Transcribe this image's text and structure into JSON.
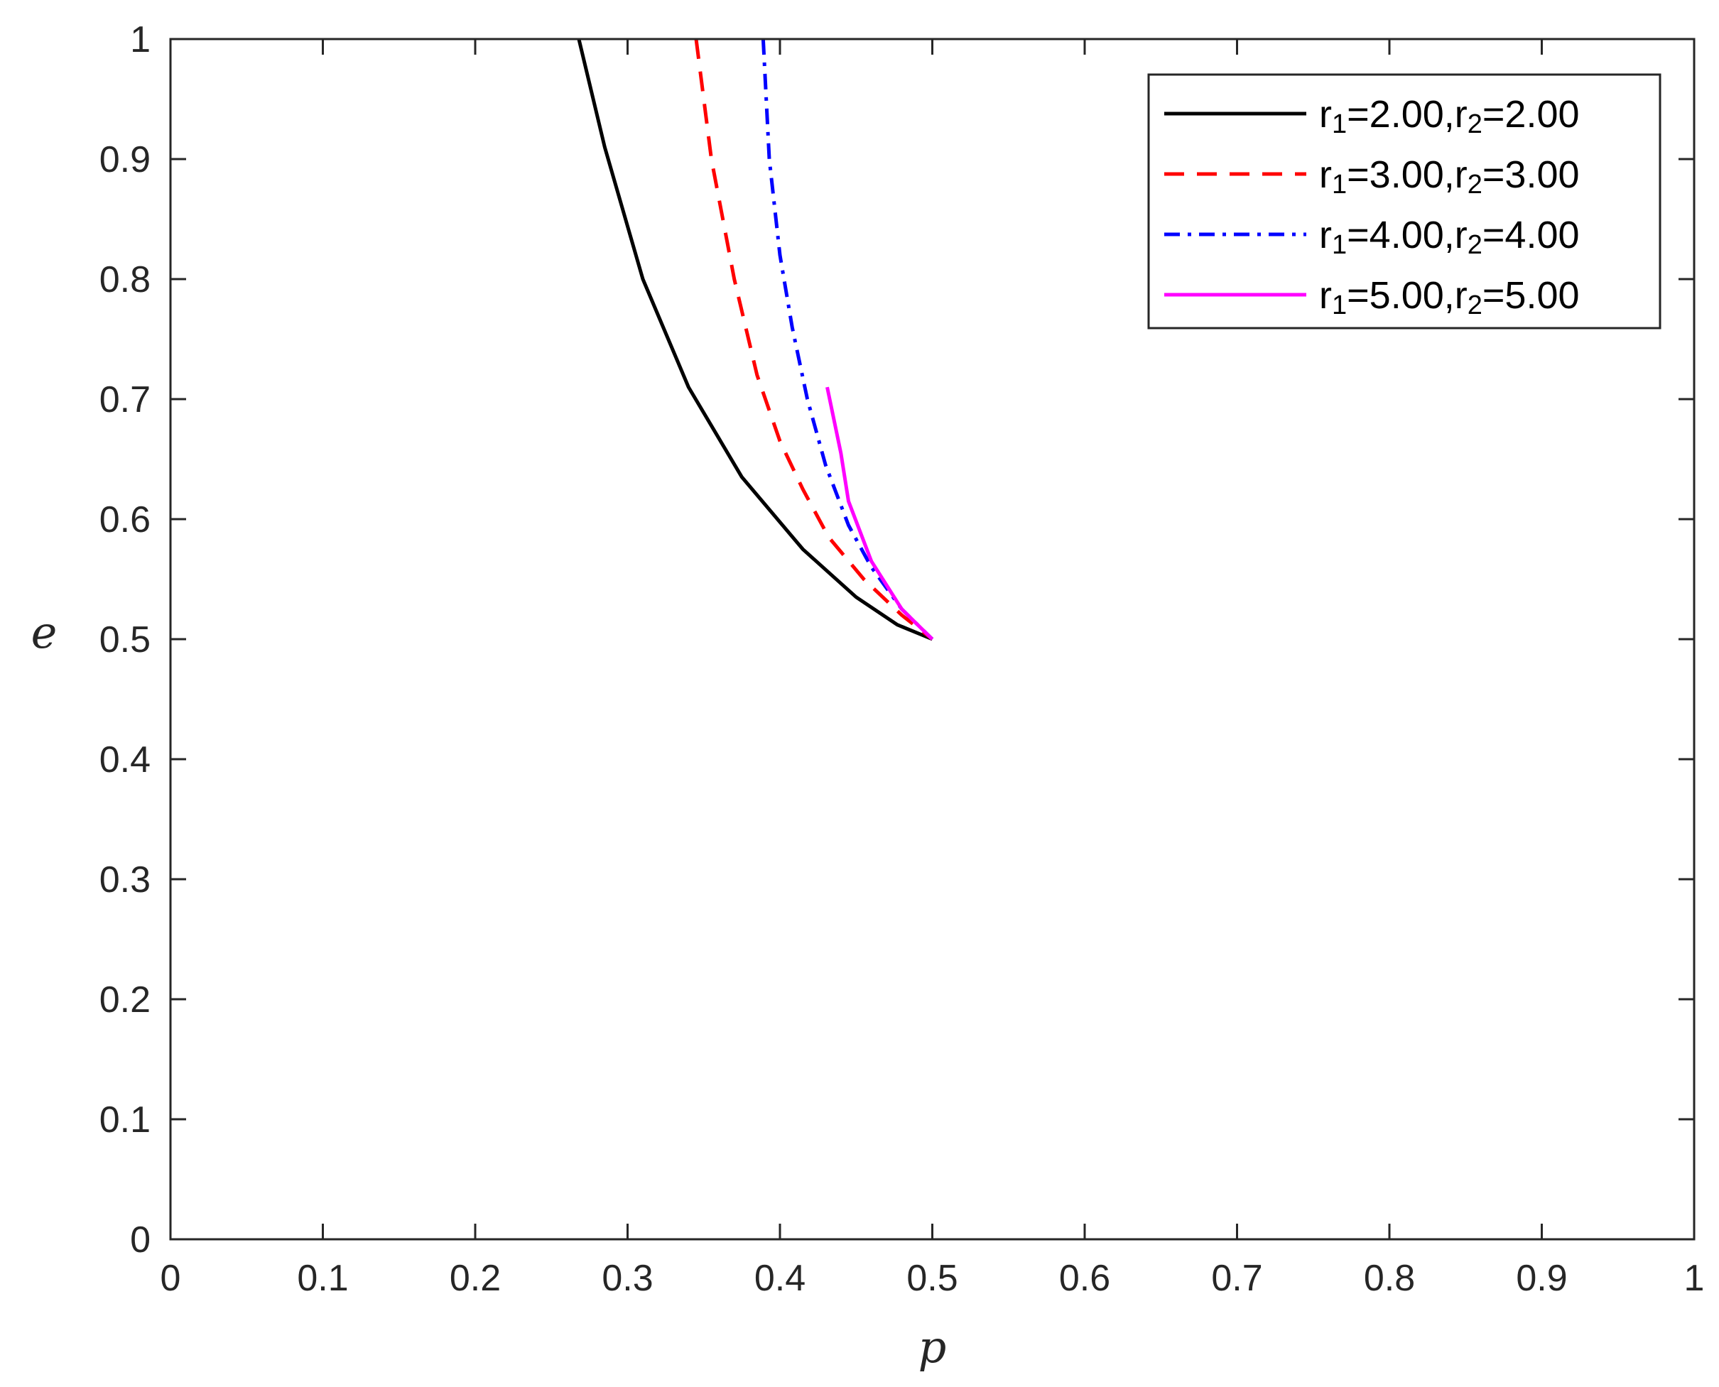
{
  "chart_data": {
    "type": "line",
    "title": "",
    "xlabel": "p",
    "ylabel": "e",
    "xlim": [
      0,
      1
    ],
    "ylim": [
      0,
      1
    ],
    "xticks": [
      "0",
      "0.1",
      "0.2",
      "0.3",
      "0.4",
      "0.5",
      "0.6",
      "0.7",
      "0.8",
      "0.9",
      "1"
    ],
    "yticks": [
      "0",
      "0.1",
      "0.2",
      "0.3",
      "0.4",
      "0.5",
      "0.6",
      "0.7",
      "0.8",
      "0.9",
      "1"
    ],
    "grid": false,
    "box": true,
    "legend_position": "top-right",
    "series": [
      {
        "name": "r1=2.00,r2=2.00",
        "name_parts": [
          "r",
          "1",
          "=2.00,r",
          "2",
          "=2.00"
        ],
        "color": "#000000",
        "style": "solid",
        "x": [
          0.268,
          0.285,
          0.31,
          0.34,
          0.375,
          0.415,
          0.45,
          0.477,
          0.5
        ],
        "y": [
          1.0,
          0.91,
          0.8,
          0.71,
          0.635,
          0.575,
          0.535,
          0.512,
          0.5
        ]
      },
      {
        "name": "r1=3.00,r2=3.00",
        "name_parts": [
          "r",
          "1",
          "=3.00,r",
          "2",
          "=3.00"
        ],
        "color": "#ff0000",
        "style": "dashed",
        "x": [
          0.345,
          0.355,
          0.37,
          0.385,
          0.4,
          0.415,
          0.432,
          0.455,
          0.48,
          0.5
        ],
        "y": [
          1.0,
          0.9,
          0.8,
          0.72,
          0.665,
          0.625,
          0.585,
          0.55,
          0.52,
          0.5
        ]
      },
      {
        "name": "r1=4.00,r2=4.00",
        "name_parts": [
          "r",
          "1",
          "=4.00,r",
          "2",
          "=4.00"
        ],
        "color": "#0000ff",
        "style": "dashdot",
        "x": [
          0.389,
          0.393,
          0.4,
          0.408,
          0.418,
          0.43,
          0.445,
          0.46,
          0.48,
          0.5
        ],
        "y": [
          1.0,
          0.9,
          0.82,
          0.76,
          0.7,
          0.645,
          0.595,
          0.56,
          0.525,
          0.5
        ]
      },
      {
        "name": "r1=5.00,r2=5.00",
        "name_parts": [
          "r",
          "1",
          "=5.00,r",
          "2",
          "=5.00"
        ],
        "color": "#ff00ff",
        "style": "solid",
        "x": [
          0.431,
          0.44,
          0.445,
          0.46,
          0.48,
          0.5
        ],
        "y": [
          0.71,
          0.655,
          0.615,
          0.565,
          0.525,
          0.5
        ]
      }
    ]
  }
}
